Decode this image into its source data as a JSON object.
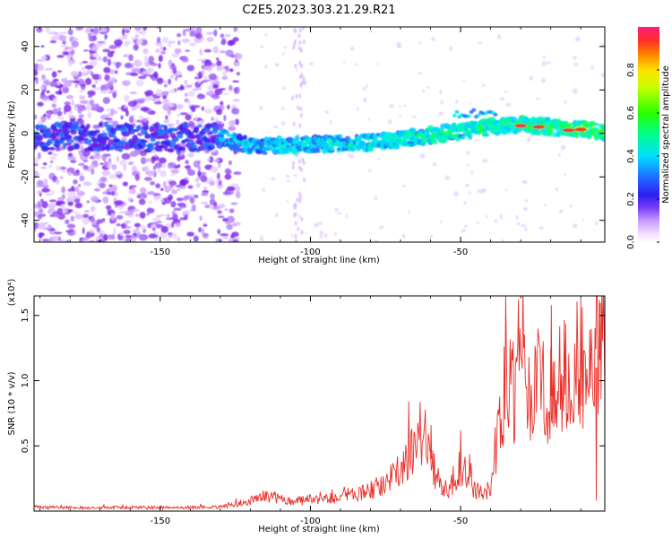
{
  "figure": {
    "title": "C2E5.2023.303.21.29.R21"
  },
  "colors": {
    "snr_line": "#e8302a",
    "frame": "#000000"
  },
  "chart_data": [
    {
      "type": "heatmap",
      "name": "spectrogram",
      "xlabel": "Height of straight line (km)",
      "ylabel": "Frequency (Hz)",
      "xlim": [
        -192,
        -2
      ],
      "ylim": [
        -50,
        49
      ],
      "xticks": [
        -150,
        -100,
        -50
      ],
      "xtick_labels": [
        "-150",
        "-100",
        "-50"
      ],
      "yticks": [
        -40,
        -20,
        0,
        20,
        40
      ],
      "ytick_labels": [
        "-40",
        "-20",
        "0",
        "20",
        "40"
      ],
      "colormap": "rainbow (violet → blue → cyan → green → yellow → orange → red → magenta)",
      "ridge": {
        "description": "dominant frequency band",
        "x": [
          -192,
          -160,
          -130,
          -120,
          -100,
          -80,
          -60,
          -50,
          -40,
          -30,
          -20,
          -10,
          -2
        ],
        "frequency": [
          -1,
          -2,
          -2,
          -6,
          -5,
          -4,
          -1,
          1,
          3,
          4,
          3,
          2,
          1
        ]
      },
      "colorbar": {
        "label": "Normalized spectral amplitude",
        "range": [
          0.0,
          1.0
        ],
        "ticks": [
          0.0,
          0.2,
          0.4,
          0.6,
          0.8
        ],
        "tick_labels": [
          "0.0",
          "0.2",
          "0.4",
          "0.6",
          "0.8"
        ]
      }
    },
    {
      "type": "line",
      "name": "snr",
      "xlabel": "Height of straight line (km)",
      "ylabel": "SNR (10 * v/v)",
      "y_multiplier": "(x10⁴)",
      "xlim": [
        -192,
        -2
      ],
      "ylim": [
        0,
        16500
      ],
      "xticks": [
        -150,
        -100,
        -50
      ],
      "xtick_labels": [
        "-150",
        "-100",
        "-50"
      ],
      "yticks": [
        5000,
        10000,
        15000
      ],
      "ytick_labels": [
        "0.5",
        "1.0",
        "1.5"
      ],
      "x": [
        -192,
        -175,
        -160,
        -145,
        -130,
        -125,
        -120,
        -115,
        -110,
        -105,
        -100,
        -95,
        -90,
        -85,
        -80,
        -75,
        -72,
        -70,
        -68,
        -65,
        -62,
        -60,
        -58,
        -55,
        -52,
        -50,
        -48,
        -45,
        -42,
        -40,
        -38,
        -36,
        -34,
        -32,
        -30,
        -28,
        -26,
        -24,
        -22,
        -20,
        -18,
        -16,
        -14,
        -12,
        -10,
        -8,
        -6,
        -4,
        -2
      ],
      "values": [
        300,
        250,
        280,
        260,
        300,
        500,
        800,
        1100,
        900,
        700,
        900,
        800,
        1100,
        1400,
        1600,
        2200,
        2800,
        3100,
        4000,
        5200,
        4800,
        4000,
        2500,
        1700,
        2100,
        3500,
        2600,
        1600,
        1400,
        2000,
        4800,
        8500,
        9600,
        8800,
        10200,
        9000,
        8200,
        10400,
        9300,
        8800,
        9000,
        10600,
        9700,
        10800,
        11800,
        8200,
        10400,
        11600,
        12800
      ]
    }
  ]
}
